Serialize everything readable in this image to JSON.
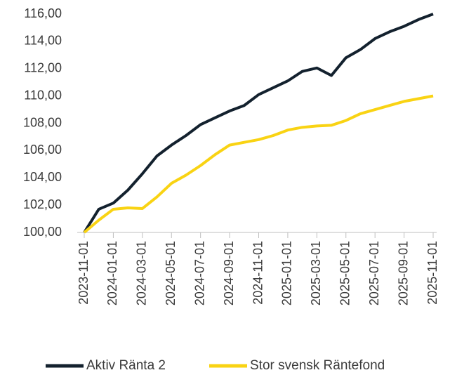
{
  "chart_data": {
    "type": "line",
    "categories": [
      "2023-11-01",
      null,
      "2024-01-01",
      null,
      "2024-03-01",
      null,
      "2024-05-01",
      null,
      "2024-07-01",
      null,
      "2024-09-01",
      null,
      "2024-11-01",
      null,
      "2025-01-01",
      null,
      "2025-03-01",
      null,
      "2025-05-01",
      null,
      "2025-07-01",
      null,
      "2025-09-01",
      null,
      "2025-11-01"
    ],
    "series": [
      {
        "name": "Aktiv Ränta 2",
        "color": "#13212e",
        "values": [
          100,
          101.7,
          102.15,
          103.1,
          104.3,
          105.6,
          106.4,
          107.1,
          107.9,
          108.4,
          108.9,
          109.3,
          110.1,
          110.6,
          111.1,
          111.8,
          112.05,
          111.5,
          112.8,
          113.4,
          114.2,
          114.7,
          115.1,
          115.6,
          116.0
        ]
      },
      {
        "name": "Stor svensk Räntefond",
        "color": "#f9d313",
        "values": [
          100,
          100.9,
          101.7,
          101.8,
          101.75,
          102.6,
          103.6,
          104.2,
          104.9,
          105.7,
          106.4,
          106.6,
          106.8,
          107.1,
          107.5,
          107.7,
          107.8,
          107.85,
          108.2,
          108.7,
          109.0,
          109.3,
          109.6,
          109.8,
          110.0
        ]
      }
    ],
    "ylim": [
      100,
      116
    ],
    "yticks": [
      {
        "value": 100,
        "label": "100,00"
      },
      {
        "value": 102,
        "label": "102,00"
      },
      {
        "value": 104,
        "label": "104,00"
      },
      {
        "value": 106,
        "label": "106,00"
      },
      {
        "value": 108,
        "label": "108,00"
      },
      {
        "value": 110,
        "label": "110,00"
      },
      {
        "value": 112,
        "label": "112,00"
      },
      {
        "value": 114,
        "label": "114,00"
      },
      {
        "value": 116,
        "label": "116,00"
      }
    ],
    "grid": false,
    "legend": "bottom"
  }
}
